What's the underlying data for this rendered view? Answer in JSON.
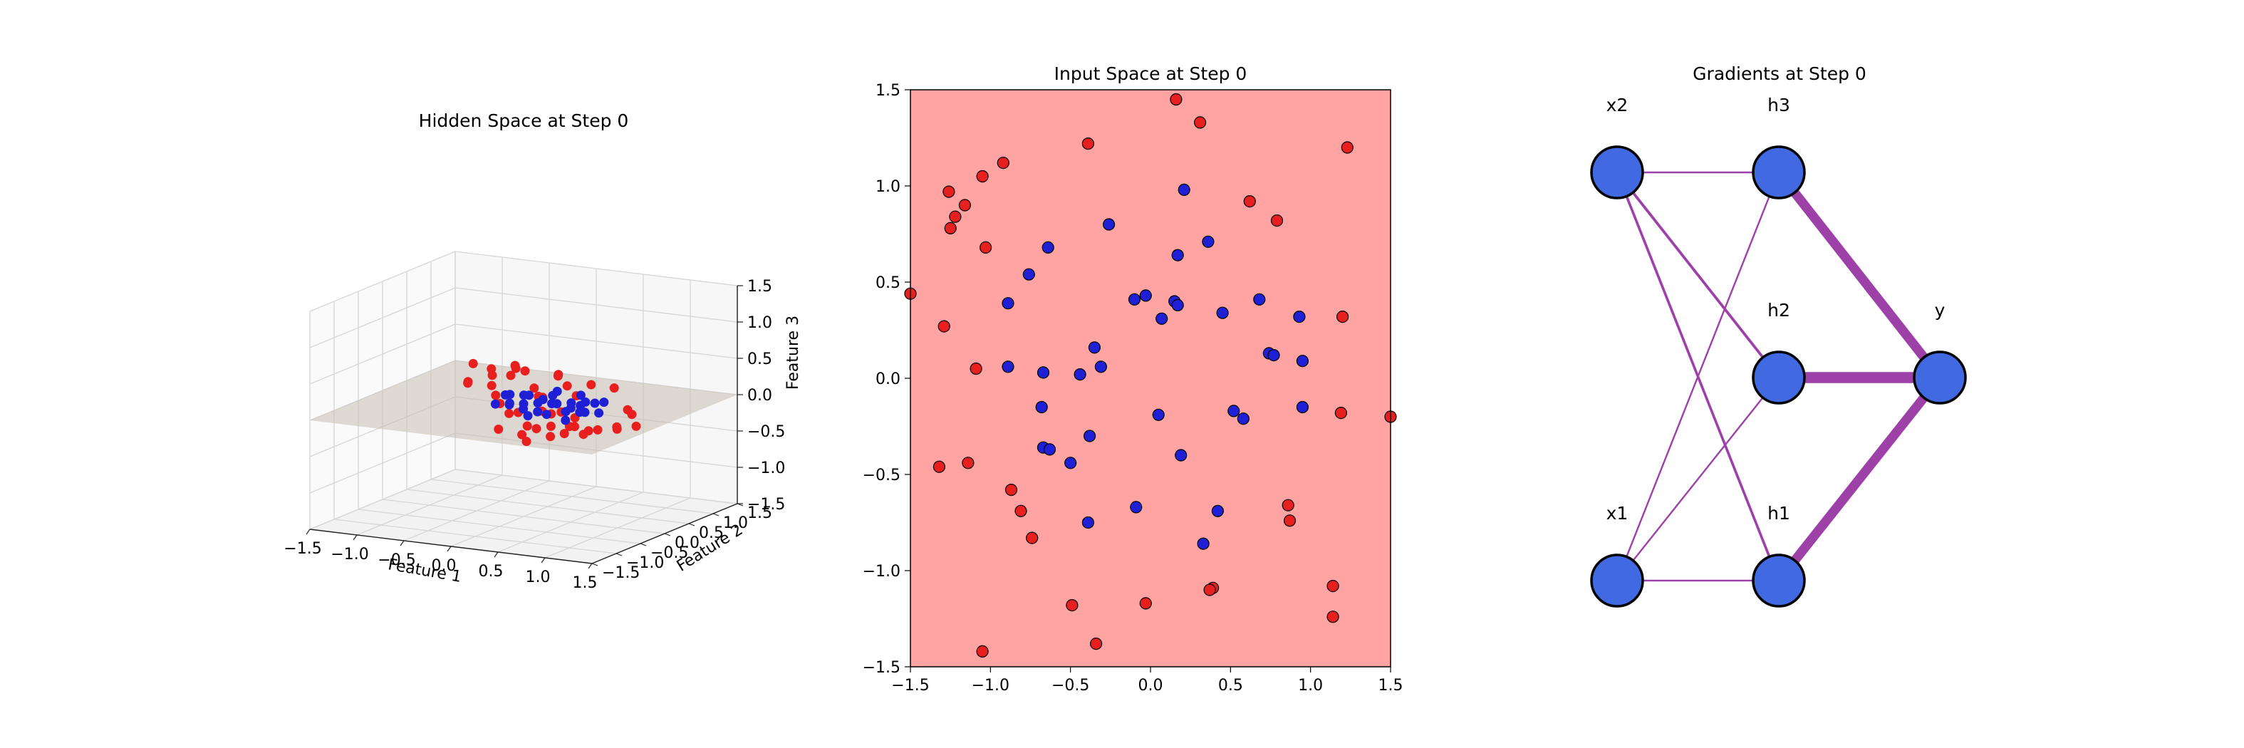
{
  "colors": {
    "class_a": "#1f1fd6",
    "class_b": "#e81f1f",
    "input_region": "#ffa3a3",
    "plane": "#c8beb4",
    "node_fill": "#4169e1",
    "edge": "#9d40a8"
  },
  "chart_data": [
    {
      "type": "scatter",
      "projection": "3d",
      "title": "Hidden Space at Step 0",
      "xlabel": "Feature 1",
      "ylabel": "Feature 2",
      "zlabel": "Feature 3",
      "xlim": [
        -1.5,
        1.5
      ],
      "ylim": [
        -1.5,
        1.5
      ],
      "zlim": [
        -1.5,
        1.5
      ],
      "x_ticks": [
        "−1.5",
        "−1.0",
        "−0.5",
        "0.0",
        "0.5",
        "1.0",
        "1.5"
      ],
      "y_ticks": [
        "−1.5",
        "−1.0",
        "−0.5",
        "0.0",
        "0.5",
        "1.0",
        "1.5"
      ],
      "z_ticks": [
        "1.5",
        "1.0",
        "0.5",
        "0.0",
        "−0.5",
        "−1.0",
        "−1.5"
      ],
      "grid": true,
      "plane_z": 0.0,
      "series": [
        {
          "class": "class_b",
          "points": [
            [
              -0.9,
              0.6,
              0.05
            ],
            [
              -0.8,
              0.4,
              0.1
            ],
            [
              -0.7,
              0.7,
              0.0
            ],
            [
              -0.6,
              0.9,
              0.1
            ],
            [
              -0.5,
              1.0,
              0.15
            ],
            [
              -0.4,
              0.2,
              0.05
            ],
            [
              -0.3,
              0.8,
              0.0
            ],
            [
              -0.2,
              1.1,
              0.1
            ],
            [
              -0.1,
              0.5,
              0.0
            ],
            [
              0.0,
              0.9,
              0.05
            ],
            [
              0.1,
              0.2,
              0.1
            ],
            [
              0.2,
              0.7,
              0.0
            ],
            [
              0.3,
              -0.2,
              0.05
            ],
            [
              0.4,
              0.0,
              0.0
            ],
            [
              0.5,
              -0.4,
              0.1
            ],
            [
              0.6,
              -0.6,
              0.0
            ],
            [
              0.7,
              -0.3,
              0.05
            ],
            [
              0.8,
              -0.5,
              0.0
            ],
            [
              0.9,
              -0.8,
              0.1
            ],
            [
              1.0,
              -0.6,
              0.0
            ],
            [
              1.1,
              -0.9,
              0.05
            ],
            [
              1.2,
              -0.4,
              0.0
            ],
            [
              1.0,
              -1.1,
              0.1
            ],
            [
              0.8,
              -1.0,
              0.0
            ],
            [
              0.6,
              -1.2,
              0.05
            ],
            [
              -1.0,
              0.9,
              0.2
            ],
            [
              -0.6,
              0.5,
              0.3
            ],
            [
              -0.4,
              0.6,
              0.35
            ],
            [
              -0.2,
              -0.1,
              0.05
            ],
            [
              0.0,
              -0.3,
              0.0
            ],
            [
              0.2,
              -0.5,
              0.1
            ],
            [
              0.4,
              -0.7,
              0.0
            ],
            [
              0.6,
              -0.9,
              0.05
            ],
            [
              1.2,
              -0.8,
              0.1
            ],
            [
              -0.9,
              1.1,
              0.0
            ],
            [
              -0.7,
              1.2,
              0.1
            ],
            [
              -0.3,
              1.3,
              0.05
            ],
            [
              0.1,
              1.2,
              0.0
            ],
            [
              0.5,
              0.9,
              0.1
            ],
            [
              0.9,
              0.4,
              0.0
            ],
            [
              1.1,
              0.1,
              0.05
            ],
            [
              1.3,
              -0.2,
              0.0
            ],
            [
              1.3,
              -0.6,
              0.1
            ],
            [
              0.7,
              -1.3,
              0.0
            ],
            [
              0.3,
              -1.1,
              0.05
            ]
          ]
        },
        {
          "class": "class_a",
          "points": [
            [
              -0.4,
              0.4,
              0.0
            ],
            [
              -0.3,
              0.3,
              0.05
            ],
            [
              -0.2,
              0.5,
              0.0
            ],
            [
              -0.1,
              0.2,
              0.1
            ],
            [
              0.0,
              0.4,
              0.0
            ],
            [
              0.1,
              0.1,
              0.05
            ],
            [
              0.2,
              0.3,
              0.0
            ],
            [
              0.3,
              0.0,
              0.1
            ],
            [
              0.4,
              0.2,
              0.0
            ],
            [
              0.5,
              -0.1,
              0.05
            ],
            [
              0.6,
              0.1,
              0.0
            ],
            [
              0.7,
              -0.2,
              0.1
            ],
            [
              0.0,
              0.0,
              0.05
            ],
            [
              0.2,
              -0.1,
              0.0
            ],
            [
              0.4,
              -0.3,
              0.05
            ],
            [
              -0.2,
              0.1,
              0.0
            ],
            [
              0.1,
              0.5,
              0.1
            ],
            [
              0.3,
              0.4,
              0.0
            ],
            [
              0.5,
              0.2,
              0.05
            ],
            [
              0.6,
              -0.3,
              0.0
            ],
            [
              -0.1,
              -0.1,
              0.05
            ],
            [
              0.2,
              -0.3,
              0.0
            ],
            [
              0.8,
              0.0,
              0.05
            ],
            [
              0.0,
              0.6,
              0.0
            ],
            [
              0.3,
              0.6,
              0.05
            ],
            [
              0.5,
              0.5,
              0.0
            ],
            [
              0.7,
              0.3,
              0.1
            ],
            [
              -0.3,
              0.0,
              0.0
            ],
            [
              0.1,
              -0.2,
              0.05
            ],
            [
              0.4,
              0.5,
              0.0
            ]
          ]
        }
      ]
    },
    {
      "type": "scatter",
      "title": "Input Space at Step 0",
      "xlim": [
        -1.5,
        1.5
      ],
      "ylim": [
        -1.5,
        1.5
      ],
      "x_ticks": [
        "−1.5",
        "−1.0",
        "−0.5",
        "0.0",
        "0.5",
        "1.0",
        "1.5"
      ],
      "y_ticks": [
        "1.5",
        "1.0",
        "0.5",
        "0.0",
        "−0.5",
        "−1.0",
        "−1.5"
      ],
      "grid": false,
      "series": [
        {
          "class": "class_a",
          "points": [
            [
              0.21,
              0.98
            ],
            [
              -0.26,
              0.8
            ],
            [
              -0.76,
              0.54
            ],
            [
              -0.64,
              0.68
            ],
            [
              0.17,
              0.64
            ],
            [
              0.36,
              0.71
            ],
            [
              -0.89,
              0.39
            ],
            [
              -0.1,
              0.41
            ],
            [
              -0.03,
              0.43
            ],
            [
              0.15,
              0.4
            ],
            [
              0.17,
              0.38
            ],
            [
              0.45,
              0.34
            ],
            [
              0.68,
              0.41
            ],
            [
              0.93,
              0.32
            ],
            [
              0.07,
              0.31
            ],
            [
              -0.35,
              0.16
            ],
            [
              -0.31,
              0.06
            ],
            [
              -0.89,
              0.06
            ],
            [
              -0.67,
              0.03
            ],
            [
              -0.44,
              0.02
            ],
            [
              0.74,
              0.13
            ],
            [
              0.77,
              0.12
            ],
            [
              0.95,
              0.09
            ],
            [
              0.52,
              -0.17
            ],
            [
              0.58,
              -0.21
            ],
            [
              0.05,
              -0.19
            ],
            [
              -0.68,
              -0.15
            ],
            [
              0.95,
              -0.15
            ],
            [
              -0.67,
              -0.36
            ],
            [
              -0.63,
              -0.37
            ],
            [
              -0.38,
              -0.3
            ],
            [
              -0.5,
              -0.44
            ],
            [
              0.19,
              -0.4
            ],
            [
              -0.09,
              -0.67
            ],
            [
              0.42,
              -0.69
            ],
            [
              -0.39,
              -0.75
            ],
            [
              0.33,
              -0.86
            ]
          ]
        },
        {
          "class": "class_b",
          "points": [
            [
              0.16,
              1.45
            ],
            [
              0.31,
              1.33
            ],
            [
              1.23,
              1.2
            ],
            [
              -0.39,
              1.22
            ],
            [
              -1.05,
              1.05
            ],
            [
              -0.92,
              1.12
            ],
            [
              -1.26,
              0.97
            ],
            [
              -1.16,
              0.9
            ],
            [
              -1.22,
              0.84
            ],
            [
              -1.25,
              0.78
            ],
            [
              0.62,
              0.92
            ],
            [
              0.79,
              0.82
            ],
            [
              -1.03,
              0.68
            ],
            [
              -1.5,
              0.44
            ],
            [
              1.2,
              0.32
            ],
            [
              -1.29,
              0.27
            ],
            [
              -1.09,
              0.05
            ],
            [
              1.19,
              -0.18
            ],
            [
              1.5,
              -0.2
            ],
            [
              -1.14,
              -0.44
            ],
            [
              -1.32,
              -0.46
            ],
            [
              -0.87,
              -0.58
            ],
            [
              -0.81,
              -0.69
            ],
            [
              0.86,
              -0.66
            ],
            [
              0.87,
              -0.74
            ],
            [
              -0.74,
              -0.83
            ],
            [
              1.14,
              -1.08
            ],
            [
              0.39,
              -1.09
            ],
            [
              0.37,
              -1.1
            ],
            [
              -0.49,
              -1.18
            ],
            [
              -0.03,
              -1.17
            ],
            [
              1.14,
              -1.24
            ],
            [
              -0.34,
              -1.38
            ],
            [
              -1.05,
              -1.42
            ]
          ]
        }
      ]
    },
    {
      "type": "network",
      "title": "Gradients at Step 0",
      "nodes": [
        {
          "id": "x1",
          "label": "x1",
          "col": 0,
          "row": 0
        },
        {
          "id": "x2",
          "label": "x2",
          "col": 0,
          "row": 2
        },
        {
          "id": "h1",
          "label": "h1",
          "col": 1,
          "row": 0
        },
        {
          "id": "h2",
          "label": "h2",
          "col": 1,
          "row": 1
        },
        {
          "id": "h3",
          "label": "h3",
          "col": 1,
          "row": 2
        },
        {
          "id": "y",
          "label": "y",
          "col": 2,
          "row": 1
        }
      ],
      "edges": [
        {
          "from": "x1",
          "to": "h1",
          "weight": 1.0
        },
        {
          "from": "x1",
          "to": "h2",
          "weight": 1.0
        },
        {
          "from": "x1",
          "to": "h3",
          "weight": 1.0
        },
        {
          "from": "x2",
          "to": "h1",
          "weight": 1.5
        },
        {
          "from": "x2",
          "to": "h2",
          "weight": 1.6
        },
        {
          "from": "x2",
          "to": "h3",
          "weight": 1.0
        },
        {
          "from": "h1",
          "to": "y",
          "weight": 5.5
        },
        {
          "from": "h2",
          "to": "y",
          "weight": 6.5
        },
        {
          "from": "h3",
          "to": "y",
          "weight": 5.5
        }
      ]
    }
  ]
}
